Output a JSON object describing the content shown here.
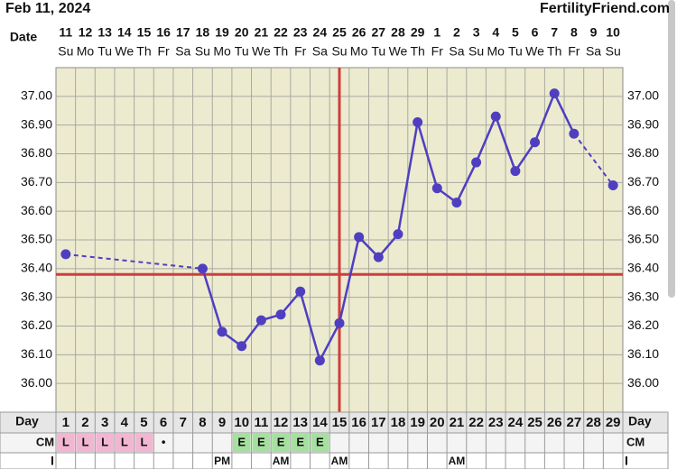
{
  "header": {
    "date": "Feb 11, 2024",
    "site": "FertilityFriend.com"
  },
  "chart_data": {
    "type": "line",
    "date_label": "Date",
    "dates": [
      "11",
      "12",
      "13",
      "14",
      "15",
      "16",
      "17",
      "18",
      "19",
      "20",
      "21",
      "22",
      "23",
      "24",
      "25",
      "26",
      "27",
      "28",
      "29",
      "1",
      "2",
      "3",
      "4",
      "5",
      "6",
      "7",
      "8",
      "9",
      "10"
    ],
    "weekdays": [
      "Su",
      "Mo",
      "Tu",
      "We",
      "Th",
      "Fr",
      "Sa",
      "Su",
      "Mo",
      "Tu",
      "We",
      "Th",
      "Fr",
      "Sa",
      "Su",
      "Mo",
      "Tu",
      "We",
      "Th",
      "Fr",
      "Sa",
      "Su",
      "Mo",
      "Tu",
      "We",
      "Th",
      "Fr",
      "Sa",
      "Su"
    ],
    "day_label": "Day",
    "categories": [
      1,
      2,
      3,
      4,
      5,
      6,
      7,
      8,
      9,
      10,
      11,
      12,
      13,
      14,
      15,
      16,
      17,
      18,
      19,
      20,
      21,
      22,
      23,
      24,
      25,
      26,
      27,
      28,
      29
    ],
    "values": [
      36.45,
      null,
      null,
      null,
      null,
      null,
      null,
      36.4,
      36.18,
      36.13,
      36.22,
      36.24,
      36.32,
      36.08,
      36.21,
      36.51,
      36.44,
      36.52,
      36.91,
      36.68,
      36.63,
      36.77,
      36.93,
      36.74,
      36.84,
      37.01,
      36.87,
      null,
      36.69
    ],
    "color": "#4f3fc0",
    "ylim": [
      35.9,
      37.1
    ],
    "yticks": [
      {
        "value": 36.0,
        "label": "36.00"
      },
      {
        "value": 36.1,
        "label": "36.10"
      },
      {
        "value": 36.2,
        "label": "36.20"
      },
      {
        "value": 36.3,
        "label": "36.30"
      },
      {
        "value": 36.4,
        "label": "36.40"
      },
      {
        "value": 36.5,
        "label": "36.50"
      },
      {
        "value": 36.6,
        "label": "36.60"
      },
      {
        "value": 36.7,
        "label": "36.70"
      },
      {
        "value": 36.8,
        "label": "36.80"
      },
      {
        "value": 36.9,
        "label": "36.90"
      },
      {
        "value": 37.0,
        "label": "37.00"
      }
    ],
    "grid": true,
    "coverline": 36.38,
    "ovulation_day": 15,
    "marker_line_color": "#d03c3c",
    "cm_label": "CM",
    "cm": [
      "L",
      "L",
      "L",
      "L",
      "L",
      "•",
      null,
      null,
      null,
      "E",
      "E",
      "E",
      "E",
      "E",
      null,
      null,
      null,
      null,
      null,
      null,
      null,
      null,
      null,
      null,
      null,
      null,
      null,
      null,
      null
    ],
    "cm_colors": {
      "L": "#f2b6d2",
      "E": "#a6e0a0"
    },
    "i_label": "I",
    "i_times": [
      null,
      null,
      null,
      null,
      null,
      null,
      null,
      null,
      "PM",
      null,
      null,
      "AM",
      null,
      null,
      "AM",
      null,
      null,
      null,
      null,
      null,
      "AM",
      null,
      null,
      null,
      null,
      null,
      null,
      null,
      null
    ]
  }
}
